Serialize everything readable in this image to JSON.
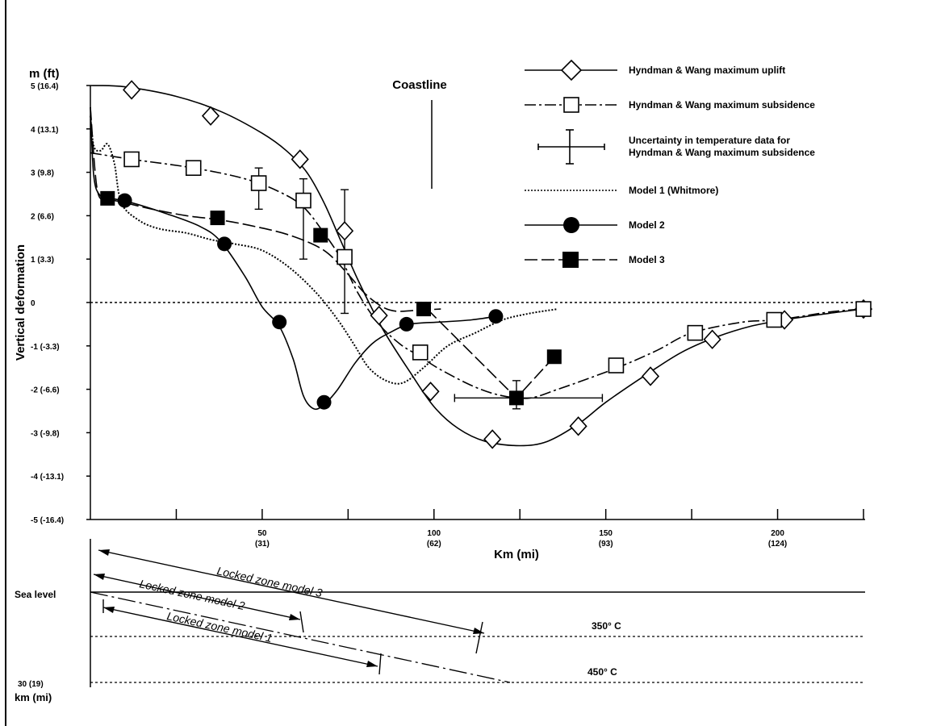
{
  "chart_data": {
    "type": "line",
    "y_unit_label": "m (ft)",
    "ylabel": "Vertical deformation",
    "xlabel": "Km (mi)",
    "ylim": [
      -5,
      5
    ],
    "xlim": [
      0,
      225
    ],
    "y_ticks": [
      {
        "value": 5,
        "label": "5 (16.4)"
      },
      {
        "value": 4,
        "label": "4 (13.1)"
      },
      {
        "value": 3,
        "label": "3 (9.8)"
      },
      {
        "value": 2,
        "label": "2 (6.6)"
      },
      {
        "value": 1,
        "label": "1 (3.3)"
      },
      {
        "value": 0,
        "label": "0"
      },
      {
        "value": -1,
        "label": "-1 (-3.3)"
      },
      {
        "value": -2,
        "label": "-2 (-6.6)"
      },
      {
        "value": -3,
        "label": "-3 (-9.8)"
      },
      {
        "value": -4,
        "label": "-4 (-13.1)"
      },
      {
        "value": -5,
        "label": "-5 (-16.4)"
      }
    ],
    "x_ticks": [
      {
        "value": 50,
        "label": "50",
        "sub": "(31)"
      },
      {
        "value": 100,
        "label": "100",
        "sub": "(62)"
      },
      {
        "value": 150,
        "label": "150",
        "sub": "(93)"
      },
      {
        "value": 200,
        "label": "200",
        "sub": "(124)"
      }
    ],
    "x_minor_ticks": [
      25,
      75,
      125,
      175,
      225
    ],
    "coastline": {
      "label": "Coastline",
      "x": 99
    },
    "series": [
      {
        "name": "Hyndman & Wang maximum uplift",
        "line": "solid",
        "marker": "diamond-open",
        "curve": [
          [
            0,
            5
          ],
          [
            10,
            4.97
          ],
          [
            25,
            4.75
          ],
          [
            38,
            4.4
          ],
          [
            50,
            3.9
          ],
          [
            57,
            3.5
          ],
          [
            63,
            3
          ],
          [
            68,
            2.3
          ],
          [
            73,
            1.4
          ],
          [
            78,
            0.5
          ],
          [
            85,
            -0.6
          ],
          [
            93,
            -1.6
          ],
          [
            100,
            -2.4
          ],
          [
            107,
            -2.9
          ],
          [
            115,
            -3.2
          ],
          [
            125,
            -3.3
          ],
          [
            133,
            -3.2
          ],
          [
            142,
            -2.8
          ],
          [
            150,
            -2.3
          ],
          [
            162,
            -1.65
          ],
          [
            172,
            -1.15
          ],
          [
            182,
            -0.8
          ],
          [
            192,
            -0.55
          ],
          [
            202,
            -0.4
          ],
          [
            215,
            -0.25
          ],
          [
            225,
            -0.15
          ]
        ],
        "markers": [
          [
            12,
            4.9
          ],
          [
            35,
            4.3
          ],
          [
            61,
            3.3
          ],
          [
            74,
            1.65
          ],
          [
            84,
            -0.3
          ],
          [
            99,
            -2.05
          ],
          [
            117,
            -3.15
          ],
          [
            142,
            -2.85
          ],
          [
            163,
            -1.7
          ],
          [
            181,
            -0.85
          ],
          [
            202,
            -0.4
          ],
          [
            225,
            -0.15
          ]
        ]
      },
      {
        "name": "Hyndman & Wang maximum subsidence",
        "line": "dash-dot",
        "marker": "square-open",
        "curve": [
          [
            0,
            3.45
          ],
          [
            12,
            3.3
          ],
          [
            30,
            3.1
          ],
          [
            45,
            2.85
          ],
          [
            55,
            2.55
          ],
          [
            62,
            2.2
          ],
          [
            68,
            1.6
          ],
          [
            73,
            1
          ],
          [
            78,
            0.2
          ],
          [
            84,
            -0.5
          ],
          [
            90,
            -0.95
          ],
          [
            95,
            -1.2
          ],
          [
            102,
            -1.55
          ],
          [
            112,
            -1.95
          ],
          [
            120,
            -2.15
          ],
          [
            128,
            -2.2
          ],
          [
            136,
            -2
          ],
          [
            145,
            -1.75
          ],
          [
            155,
            -1.45
          ],
          [
            165,
            -1.1
          ],
          [
            175,
            -0.7
          ],
          [
            190,
            -0.45
          ],
          [
            200,
            -0.4
          ],
          [
            215,
            -0.22
          ],
          [
            225,
            -0.15
          ]
        ],
        "markers": [
          [
            12,
            3.3
          ],
          [
            30,
            3.1
          ],
          [
            49,
            2.75
          ],
          [
            62,
            2.35
          ],
          [
            74,
            1.05
          ],
          [
            96,
            -1.15
          ],
          [
            153,
            -1.45
          ],
          [
            176,
            -0.7
          ],
          [
            199,
            -0.4
          ],
          [
            225,
            -0.15
          ]
        ]
      },
      {
        "name": "Uncertainty in temperature data for Hyndman & Wang maximum subsidence",
        "line": "solid",
        "marker": "error-bar",
        "error_bars": [
          {
            "x": 49,
            "y": 2.75,
            "y_range": [
              2.15,
              3.1
            ]
          },
          {
            "x": 62,
            "y": 2.35,
            "y_range": [
              1,
              2.85
            ]
          },
          {
            "x": 74,
            "y": 1.05,
            "y_range": [
              -0.25,
              2.6
            ]
          },
          {
            "x": 124,
            "y": -2.2,
            "y_range": [
              -2.45,
              -1.8
            ],
            "x_range": [
              106,
              149
            ]
          }
        ]
      },
      {
        "name": "Model 1 (Whitmore)",
        "line": "dotted",
        "marker": "none",
        "curve": [
          [
            0,
            4.3
          ],
          [
            1,
            3.6
          ],
          [
            3,
            3.5
          ],
          [
            5,
            3.65
          ],
          [
            7,
            3.2
          ],
          [
            9,
            2.3
          ],
          [
            14,
            1.9
          ],
          [
            20,
            1.7
          ],
          [
            28,
            1.6
          ],
          [
            35,
            1.45
          ],
          [
            42,
            1.35
          ],
          [
            50,
            1.2
          ],
          [
            58,
            0.8
          ],
          [
            66,
            0.2
          ],
          [
            72,
            -0.4
          ],
          [
            77,
            -1
          ],
          [
            81,
            -1.5
          ],
          [
            86,
            -1.8
          ],
          [
            91,
            -1.85
          ],
          [
            97,
            -1.5
          ],
          [
            104,
            -1
          ],
          [
            112,
            -0.7
          ],
          [
            120,
            -0.4
          ],
          [
            128,
            -0.25
          ],
          [
            136,
            -0.15
          ]
        ]
      },
      {
        "name": "Model 2",
        "line": "solid",
        "marker": "circle-filled",
        "curve": [
          [
            0,
            4.5
          ],
          [
            1,
            2.9
          ],
          [
            3,
            2.45
          ],
          [
            6,
            2.4
          ],
          [
            12,
            2.3
          ],
          [
            22,
            2.05
          ],
          [
            32,
            1.75
          ],
          [
            38,
            1.4
          ],
          [
            45,
            0.6
          ],
          [
            50,
            -0.1
          ],
          [
            55,
            -0.55
          ],
          [
            59,
            -1.3
          ],
          [
            62,
            -2.15
          ],
          [
            65,
            -2.45
          ],
          [
            68,
            -2.35
          ],
          [
            72,
            -2
          ],
          [
            77,
            -1.4
          ],
          [
            82,
            -0.95
          ],
          [
            87,
            -0.7
          ],
          [
            93,
            -0.5
          ],
          [
            102,
            -0.45
          ],
          [
            111,
            -0.4
          ],
          [
            118,
            -0.32
          ]
        ],
        "markers": [
          [
            10,
            2.35
          ],
          [
            39,
            1.35
          ],
          [
            55,
            -0.45
          ],
          [
            68,
            -2.3
          ],
          [
            92,
            -0.5
          ],
          [
            118,
            -0.32
          ]
        ]
      },
      {
        "name": "Model 3",
        "line": "long-dash",
        "marker": "square-filled",
        "curve": [
          [
            0,
            4.5
          ],
          [
            2,
            2.6
          ],
          [
            5,
            2.4
          ],
          [
            10,
            2.3
          ],
          [
            18,
            2.15
          ],
          [
            28,
            2
          ],
          [
            38,
            1.9
          ],
          [
            48,
            1.75
          ],
          [
            58,
            1.55
          ],
          [
            68,
            1.2
          ],
          [
            75,
            0.65
          ],
          [
            80,
            0.2
          ],
          [
            85,
            -0.1
          ],
          [
            89,
            -0.2
          ],
          [
            95,
            -0.18
          ],
          [
            102,
            -0.15
          ]
        ],
        "extra": [
          [
            98,
            -0.15
          ],
          [
            124,
            -2.2
          ],
          [
            135,
            -1.25
          ]
        ],
        "markers": [
          [
            5,
            2.4
          ],
          [
            37,
            1.95
          ],
          [
            67,
            1.55
          ],
          [
            97,
            -0.15
          ],
          [
            124,
            -2.2
          ],
          [
            135,
            -1.25
          ]
        ]
      }
    ],
    "cross_section": {
      "sea_level_label": "Sea level",
      "depth_label": "30 (19)",
      "depth_unit_label": "km (mi)",
      "isotherms": [
        "350° C",
        "450° C"
      ],
      "locked_zones": [
        "Locked zone model 3",
        "Locked zone model 2",
        "Locked zone model 1"
      ]
    }
  }
}
